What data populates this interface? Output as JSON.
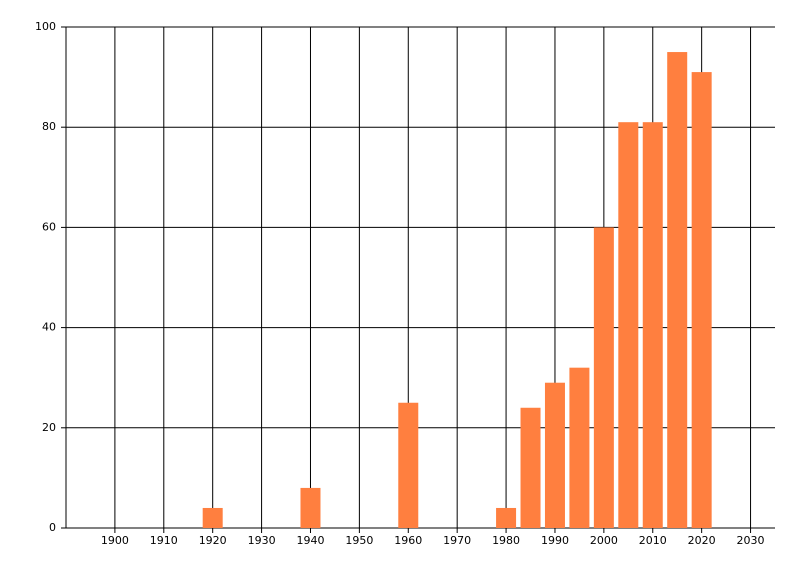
{
  "chart_data": {
    "type": "bar",
    "x": [
      1920,
      1940,
      1960,
      1980,
      1985,
      1990,
      1995,
      2000,
      2005,
      2010,
      2015,
      2020
    ],
    "values": [
      4,
      8,
      25,
      4,
      24,
      29,
      32,
      60,
      81,
      81,
      95,
      91
    ],
    "color": "#ff7f3f",
    "xlim": [
      1890,
      2035
    ],
    "xticks": [
      1900,
      1910,
      1920,
      1930,
      1940,
      1950,
      1960,
      1970,
      1980,
      1990,
      2000,
      2010,
      2020,
      2030
    ],
    "ylim": [
      0,
      100
    ],
    "yticks": [
      0,
      20,
      40,
      60,
      80,
      100
    ],
    "grid": true
  }
}
